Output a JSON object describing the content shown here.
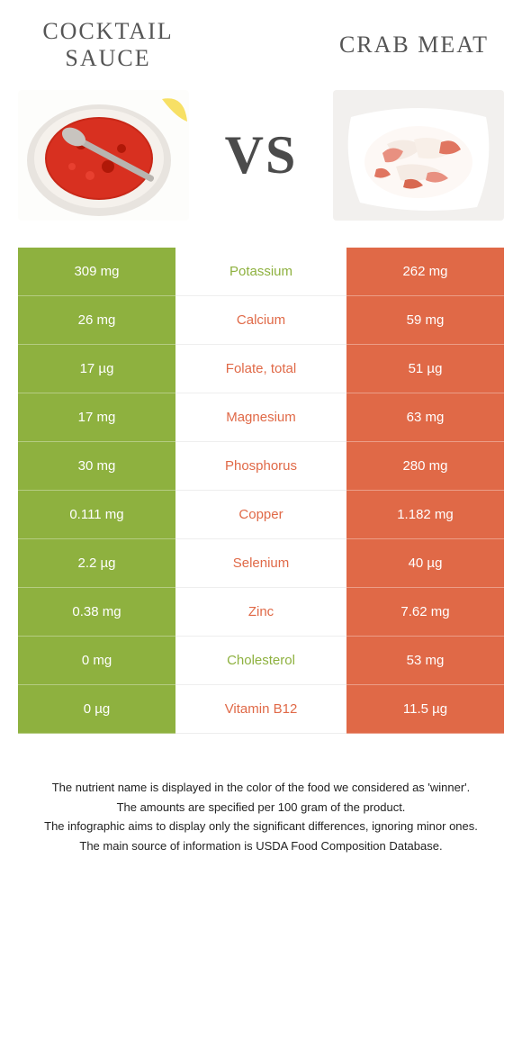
{
  "left_food": {
    "title": "Cocktail Sauce",
    "color": "#8eb13f"
  },
  "right_food": {
    "title": "Crab Meat",
    "color": "#e06947"
  },
  "vs_label": "VS",
  "colors": {
    "left_bar": "#8eb13f",
    "right_bar": "#e06947",
    "mid_bg": "#ffffff"
  },
  "rows": [
    {
      "left": "309 mg",
      "name": "Potassium",
      "right": "262 mg",
      "winner": "left"
    },
    {
      "left": "26 mg",
      "name": "Calcium",
      "right": "59 mg",
      "winner": "right"
    },
    {
      "left": "17 µg",
      "name": "Folate, total",
      "right": "51 µg",
      "winner": "right"
    },
    {
      "left": "17 mg",
      "name": "Magnesium",
      "right": "63 mg",
      "winner": "right"
    },
    {
      "left": "30 mg",
      "name": "Phosphorus",
      "right": "280 mg",
      "winner": "right"
    },
    {
      "left": "0.111 mg",
      "name": "Copper",
      "right": "1.182 mg",
      "winner": "right"
    },
    {
      "left": "2.2 µg",
      "name": "Selenium",
      "right": "40 µg",
      "winner": "right"
    },
    {
      "left": "0.38 mg",
      "name": "Zinc",
      "right": "7.62 mg",
      "winner": "right"
    },
    {
      "left": "0 mg",
      "name": "Cholesterol",
      "right": "53 mg",
      "winner": "left"
    },
    {
      "left": "0 µg",
      "name": "Vitamin B12",
      "right": "11.5 µg",
      "winner": "right"
    }
  ],
  "footer": {
    "line1": "The nutrient name is displayed in the color of the food we considered as 'winner'.",
    "line2": "The amounts are specified per 100 gram of the product.",
    "line3": "The infographic aims to display only the significant differences, ignoring minor ones.",
    "line4": "The main source of information is USDA Food Composition Database."
  }
}
